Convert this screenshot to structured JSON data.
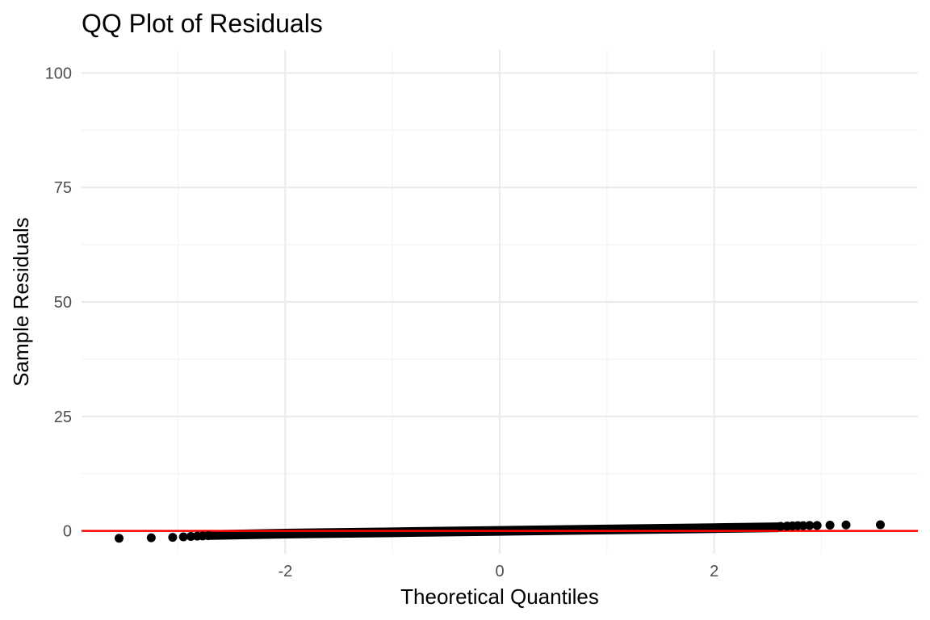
{
  "chart_data": {
    "type": "scatter",
    "title": "QQ Plot of Residuals",
    "xlabel": "Theoretical Quantiles",
    "ylabel": "Sample Residuals",
    "xlim": [
      -3.9,
      3.9
    ],
    "ylim": [
      -5,
      105
    ],
    "x_ticks": [
      -2,
      0,
      2
    ],
    "y_ticks": [
      0,
      25,
      50,
      75,
      100
    ],
    "grid": true,
    "reference_line": {
      "slope": 0,
      "intercept": 0,
      "color": "#ff0000"
    },
    "point_color": "#000000",
    "band_description": "dense overlapping points forming a thick band near zero",
    "band": [
      {
        "x": -2.7,
        "y": -0.9
      },
      {
        "x": -2.0,
        "y": -0.6
      },
      {
        "x": -1.0,
        "y": -0.3
      },
      {
        "x": 0.0,
        "y": 0.0
      },
      {
        "x": 1.0,
        "y": 0.3
      },
      {
        "x": 2.0,
        "y": 0.6
      },
      {
        "x": 2.6,
        "y": 0.8
      }
    ],
    "points": [
      {
        "x": -3.55,
        "y": -1.6
      },
      {
        "x": -3.25,
        "y": -1.5
      },
      {
        "x": -3.05,
        "y": -1.4
      },
      {
        "x": -2.95,
        "y": -1.3
      },
      {
        "x": -2.88,
        "y": -1.2
      },
      {
        "x": -2.82,
        "y": -1.15
      },
      {
        "x": -2.77,
        "y": -1.1
      },
      {
        "x": -2.72,
        "y": -1.05
      },
      {
        "x": 2.62,
        "y": 1.0
      },
      {
        "x": 2.68,
        "y": 1.05
      },
      {
        "x": 2.73,
        "y": 1.1
      },
      {
        "x": 2.78,
        "y": 1.15
      },
      {
        "x": 2.83,
        "y": 1.15
      },
      {
        "x": 2.89,
        "y": 1.2
      },
      {
        "x": 2.96,
        "y": 1.2
      },
      {
        "x": 3.08,
        "y": 1.25
      },
      {
        "x": 3.23,
        "y": 1.3
      },
      {
        "x": 3.55,
        "y": 1.35
      }
    ]
  }
}
